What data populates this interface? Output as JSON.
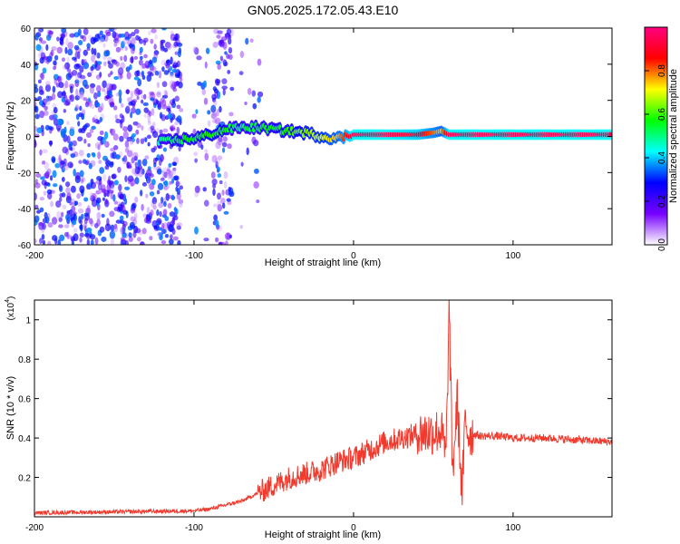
{
  "title": "GN05.2025.172.05.43.E10",
  "chart_data": [
    {
      "type": "heatmap",
      "xlabel": "Height of straight line (km)",
      "ylabel": "Frequency (Hz)",
      "xlim": [
        -200,
        162
      ],
      "ylim": [
        -60,
        60
      ],
      "xticks": [
        -200,
        -100,
        0,
        100
      ],
      "yticks": [
        -60,
        -40,
        -20,
        0,
        20,
        40,
        60
      ],
      "colorbar": {
        "label": "Normalized spectral amplitude",
        "range": [
          0,
          1
        ],
        "ticks": [
          "0.0",
          "0.2",
          "0.4",
          "0.6",
          "0.8"
        ],
        "colors": [
          "#ffffff",
          "#7700ff",
          "#0000ff",
          "#00ffff",
          "#00ff00",
          "#ffff00",
          "#ff0000",
          "#ff0080"
        ]
      },
      "ridge": {
        "x": [
          -122,
          -110,
          -100,
          -90,
          -80,
          -70,
          -60,
          -50,
          -40,
          -30,
          -20,
          -10,
          0,
          20,
          40,
          50,
          55,
          60,
          162
        ],
        "y": [
          -3,
          -2,
          -1,
          1,
          4,
          5,
          5,
          4,
          3,
          2,
          0,
          -1,
          1,
          1,
          1,
          2,
          3,
          1,
          1
        ],
        "amplitude": [
          0.45,
          0.55,
          0.55,
          0.6,
          0.55,
          0.5,
          0.55,
          0.55,
          0.6,
          0.65,
          0.7,
          0.75,
          0.95,
          0.95,
          0.9,
          0.8,
          0.75,
          0.95,
          0.95
        ]
      }
    },
    {
      "type": "line",
      "xlabel": "Height of straight line (km)",
      "ylabel": "SNR (10 * v/v)",
      "y_multiplier": "(x10",
      "y_multiplier_exp": "4",
      "y_multiplier_close": ")",
      "xlim": [
        -200,
        162
      ],
      "ylim": [
        0,
        1.1
      ],
      "xticks": [
        -200,
        -100,
        0,
        100
      ],
      "yticks": [
        0.2,
        0.4,
        0.6,
        0.8,
        1
      ],
      "color": "#f03a2e",
      "series": [
        {
          "x": [
            -200,
            -150,
            -100,
            -90,
            -80,
            -70,
            -60,
            -50,
            -40,
            -30,
            -20,
            -10,
            0,
            10,
            20,
            30,
            40,
            50,
            55,
            58,
            60,
            62,
            65,
            68,
            70,
            72,
            75,
            80,
            90,
            100,
            120,
            140,
            162
          ],
          "y": [
            0.02,
            0.025,
            0.03,
            0.04,
            0.06,
            0.08,
            0.12,
            0.16,
            0.2,
            0.22,
            0.24,
            0.28,
            0.3,
            0.34,
            0.38,
            0.4,
            0.42,
            0.43,
            0.44,
            0.3,
            1.08,
            0.2,
            0.6,
            0.1,
            0.5,
            0.42,
            0.42,
            0.41,
            0.41,
            0.4,
            0.4,
            0.39,
            0.38
          ]
        }
      ]
    }
  ]
}
